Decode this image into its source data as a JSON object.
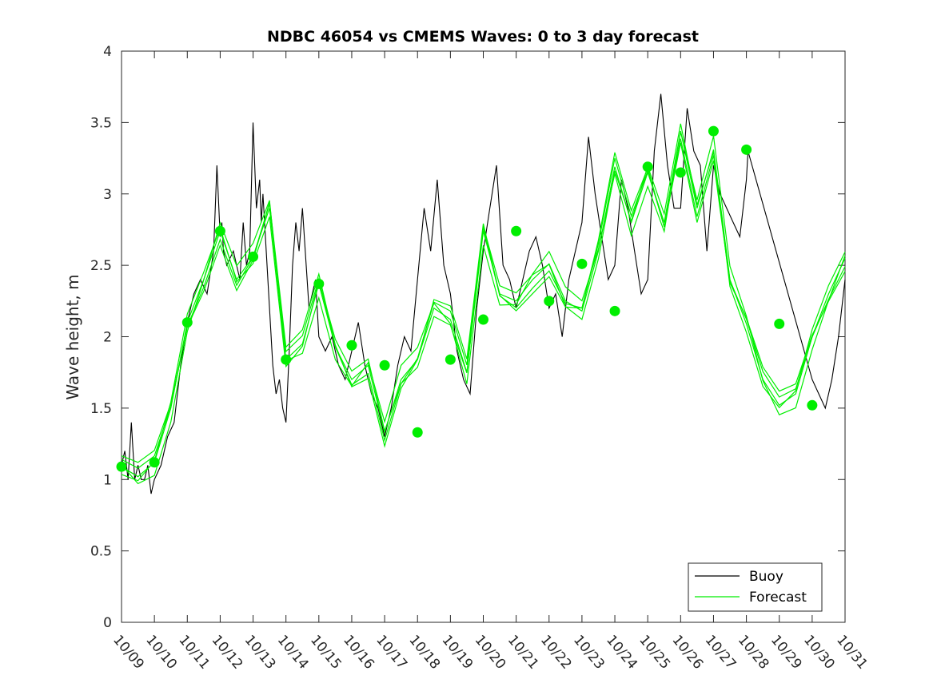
{
  "chart_data": {
    "type": "line",
    "title": "NDBC 46054 vs CMEMS Waves: 0 to 3 day forecast",
    "xlabel": "",
    "ylabel": "Wave height, m",
    "xlim": [
      "10/09",
      "10/31"
    ],
    "ylim": [
      0,
      4
    ],
    "x_tick_labels": [
      "10/09",
      "10/10",
      "10/11",
      "10/12",
      "10/13",
      "10/14",
      "10/15",
      "10/16",
      "10/17",
      "10/18",
      "10/19",
      "10/20",
      "10/21",
      "10/22",
      "10/23",
      "10/24",
      "10/25",
      "10/26",
      "10/27",
      "10/28",
      "10/29",
      "10/30",
      "10/31"
    ],
    "y_tick_labels": [
      "0",
      "0.5",
      "1",
      "1.5",
      "2",
      "2.5",
      "3",
      "3.5",
      "4"
    ],
    "grid": false,
    "legend": {
      "placement": "bottom-right",
      "entries": [
        "Buoy",
        "Forecast"
      ]
    },
    "colors": {
      "buoy": "#000000",
      "forecast": "#00ee00",
      "axes": "#262626"
    },
    "series": [
      {
        "name": "Buoy",
        "color": "#000000",
        "x_day": [
          0,
          0.1,
          0.2,
          0.3,
          0.4,
          0.5,
          0.6,
          0.7,
          0.8,
          0.9,
          1.0,
          1.2,
          1.4,
          1.6,
          1.8,
          2.0,
          2.1,
          2.2,
          2.4,
          2.6,
          2.8,
          2.9,
          3.0,
          3.05,
          3.1,
          3.2,
          3.4,
          3.6,
          3.7,
          3.8,
          3.9,
          4.0,
          4.1,
          4.2,
          4.25,
          4.3,
          4.4,
          4.5,
          4.6,
          4.7,
          4.8,
          4.9,
          5.0,
          5.1,
          5.2,
          5.3,
          5.4,
          5.5,
          5.7,
          5.9,
          6.0,
          6.2,
          6.4,
          6.6,
          6.8,
          7.0,
          7.2,
          7.4,
          7.6,
          7.8,
          8.0,
          8.2,
          8.4,
          8.6,
          8.8,
          9.0,
          9.2,
          9.4,
          9.6,
          9.8,
          10.0,
          10.2,
          10.4,
          10.6,
          10.8,
          11.0,
          11.2,
          11.4,
          11.6,
          11.8,
          12.0,
          12.2,
          12.4,
          12.6,
          12.8,
          13.0,
          13.2,
          13.4,
          13.6,
          13.8,
          14.0,
          14.2,
          14.4,
          14.6,
          14.8,
          15.0,
          15.2,
          15.4,
          15.6,
          15.8,
          16.0,
          16.2,
          16.4,
          16.6,
          16.8,
          17.0,
          17.2,
          17.4,
          17.6,
          17.8,
          18.0,
          18.2,
          18.4,
          18.6,
          18.8,
          19.0,
          19.05,
          21.0,
          21.2,
          21.4,
          21.6,
          21.8,
          22.0
        ],
        "values": [
          1.1,
          1.2,
          1.0,
          1.4,
          1.0,
          1.1,
          1.0,
          1.0,
          1.1,
          0.9,
          1.0,
          1.1,
          1.3,
          1.4,
          1.8,
          2.1,
          2.2,
          2.3,
          2.4,
          2.3,
          2.6,
          3.2,
          2.7,
          2.8,
          2.6,
          2.5,
          2.6,
          2.4,
          2.8,
          2.5,
          2.6,
          3.5,
          2.9,
          3.1,
          2.8,
          3.0,
          2.6,
          2.2,
          1.8,
          1.6,
          1.7,
          1.5,
          1.4,
          1.9,
          2.5,
          2.8,
          2.6,
          2.9,
          2.2,
          2.4,
          2.0,
          1.9,
          2.0,
          1.8,
          1.7,
          1.9,
          2.1,
          1.8,
          1.6,
          1.5,
          1.3,
          1.5,
          1.8,
          2.0,
          1.9,
          2.4,
          2.9,
          2.6,
          3.1,
          2.5,
          2.3,
          1.9,
          1.7,
          1.6,
          2.2,
          2.6,
          2.9,
          3.2,
          2.5,
          2.4,
          2.2,
          2.4,
          2.6,
          2.7,
          2.5,
          2.2,
          2.3,
          2.0,
          2.4,
          2.6,
          2.8,
          3.4,
          3.0,
          2.7,
          2.4,
          2.5,
          3.1,
          2.9,
          2.6,
          2.3,
          2.4,
          3.3,
          3.7,
          3.2,
          2.9,
          2.9,
          3.6,
          3.3,
          3.2,
          2.6,
          3.2,
          3.0,
          2.9,
          2.8,
          2.7,
          3.1,
          3.3,
          1.7,
          1.6,
          1.5,
          1.7,
          2.0,
          2.4
        ]
      },
      {
        "name": "Forecast",
        "color": "#00ee00",
        "x_day": [
          0,
          0.5,
          1,
          1.5,
          2,
          2.5,
          3,
          3.5,
          4,
          4.5,
          5,
          5.5,
          6,
          6.5,
          7,
          7.5,
          8,
          8.5,
          9,
          9.5,
          10,
          10.5,
          11,
          11.5,
          12,
          12.5,
          13,
          13.5,
          14,
          14.5,
          15,
          15.5,
          16,
          16.5,
          17,
          17.5,
          18,
          18.5,
          19,
          19.5,
          20,
          20.5,
          21,
          21.5,
          22
        ],
        "values": [
          1.09,
          1.02,
          1.12,
          1.5,
          2.1,
          2.4,
          2.74,
          2.4,
          2.56,
          2.9,
          1.84,
          1.95,
          2.37,
          1.93,
          1.7,
          1.8,
          1.33,
          1.7,
          1.84,
          2.2,
          2.12,
          1.75,
          2.74,
          2.3,
          2.25,
          2.4,
          2.51,
          2.25,
          2.18,
          2.6,
          3.19,
          2.8,
          3.15,
          2.8,
          3.44,
          2.9,
          3.31,
          2.4,
          2.09,
          1.7,
          1.52,
          1.6,
          2.0,
          2.3,
          2.55
        ]
      }
    ],
    "forecast_markers": {
      "x_day": [
        0,
        1,
        2,
        3,
        4,
        5,
        6,
        7,
        8,
        9,
        10,
        11,
        12,
        13,
        14,
        15,
        16,
        17,
        18,
        19,
        20,
        21
      ],
      "values": [
        1.09,
        1.12,
        2.1,
        2.74,
        2.56,
        1.84,
        2.37,
        1.94,
        1.8,
        1.33,
        1.84,
        2.12,
        2.74,
        2.25,
        2.51,
        2.18,
        3.19,
        3.15,
        3.44,
        3.31,
        2.09,
        1.52
      ]
    }
  }
}
